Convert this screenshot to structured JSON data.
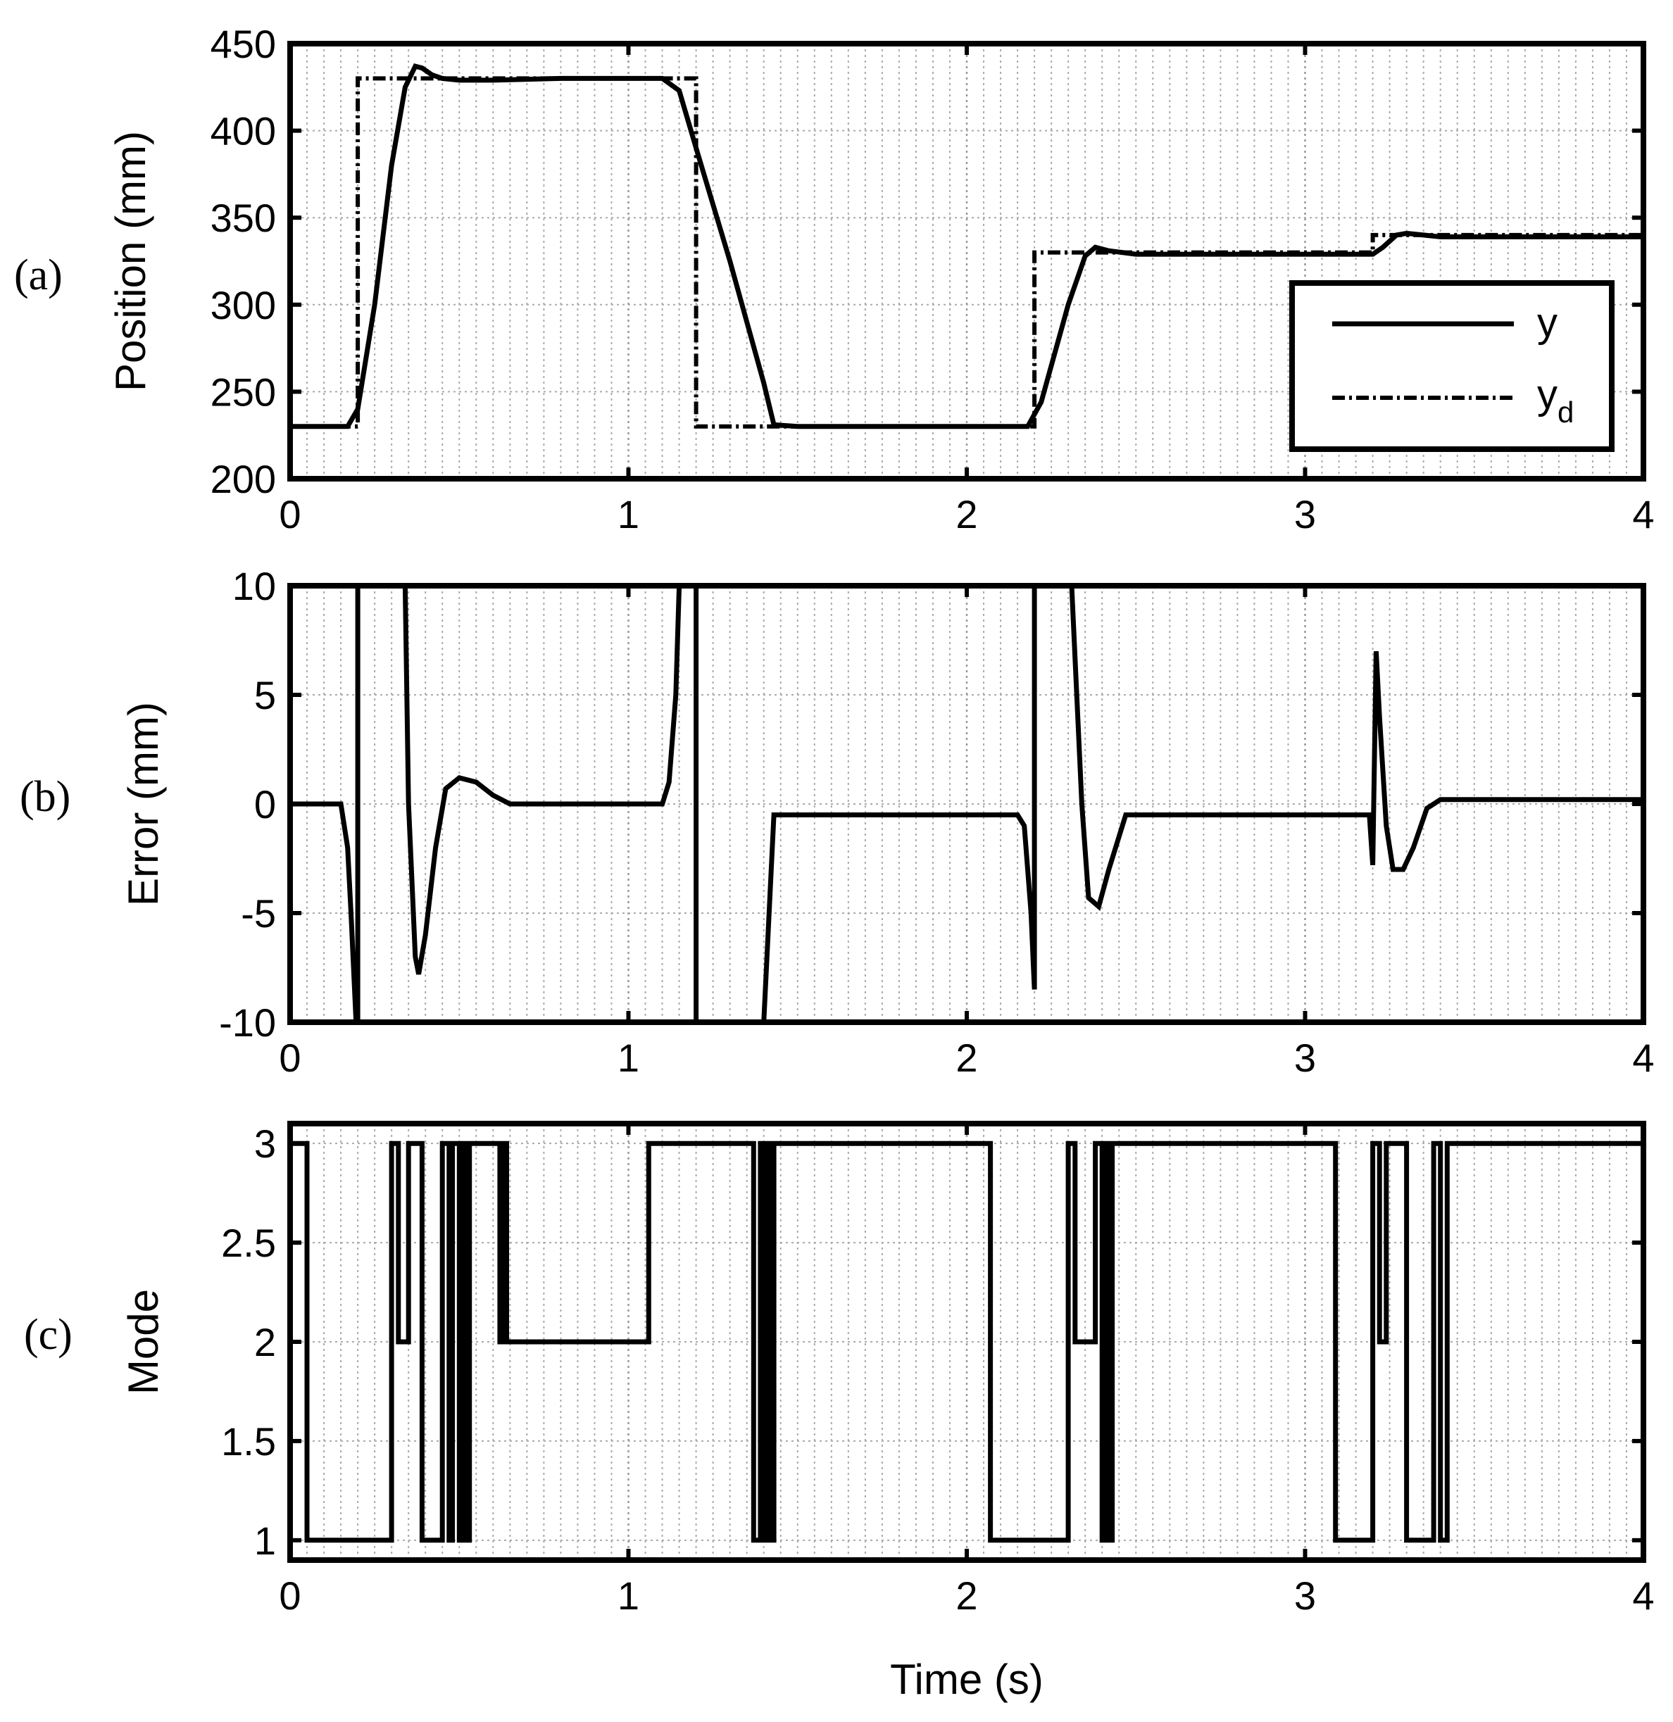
{
  "figure": {
    "xlabel": "Time (s)",
    "xticks": [
      "0",
      "1",
      "2",
      "3",
      "4"
    ]
  },
  "chart_data": [
    {
      "panel_label": "(a)",
      "type": "line",
      "ylabel": "Position (mm)",
      "xlim": [
        0,
        4
      ],
      "ylim": [
        200,
        450
      ],
      "yticks": [
        "200",
        "250",
        "300",
        "350",
        "400",
        "450"
      ],
      "grid": true,
      "legend_position": "bottom-right",
      "legend": [
        {
          "label": "y",
          "sub": "",
          "style": "solid"
        },
        {
          "label": "y",
          "sub": "d",
          "style": "dashdot"
        }
      ],
      "series": [
        {
          "name": "y",
          "style": "solid",
          "x": [
            0,
            0.17,
            0.2,
            0.25,
            0.3,
            0.34,
            0.37,
            0.39,
            0.42,
            0.45,
            0.5,
            0.6,
            0.8,
            1.0,
            1.1,
            1.15,
            1.2,
            1.3,
            1.35,
            1.4,
            1.43,
            1.5,
            1.8,
            2.0,
            2.18,
            2.22,
            2.3,
            2.35,
            2.38,
            2.42,
            2.5,
            2.8,
            3.0,
            3.2,
            3.23,
            3.27,
            3.3,
            3.35,
            3.4,
            3.6,
            4.0
          ],
          "y": [
            230,
            230,
            240,
            300,
            380,
            425,
            437,
            436,
            432,
            430,
            429,
            429,
            430,
            430,
            430,
            423,
            390,
            325,
            290,
            255,
            231,
            230,
            230,
            230,
            230,
            244,
            300,
            328,
            333,
            331,
            329,
            329,
            329,
            329,
            333,
            340,
            341,
            340,
            339,
            339,
            339
          ]
        },
        {
          "name": "yd",
          "style": "dashdot",
          "x": [
            0,
            0.2,
            0.2,
            1.2,
            1.2,
            2.2,
            2.2,
            3.2,
            3.2,
            4.0
          ],
          "y": [
            230,
            230,
            430,
            430,
            230,
            230,
            330,
            330,
            340,
            340
          ]
        }
      ]
    },
    {
      "panel_label": "(b)",
      "type": "line",
      "ylabel": "Error (mm)",
      "xlim": [
        0,
        4
      ],
      "ylim": [
        -10,
        10
      ],
      "yticks": [
        "-10",
        "-5",
        "0",
        "5",
        "10"
      ],
      "grid": true,
      "series": [
        {
          "name": "",
          "style": "solid",
          "x": [
            0,
            0.15,
            0.17,
            0.18,
            0.195,
            0.2,
            0.2,
            0.34,
            0.35,
            0.37,
            0.38,
            0.4,
            0.43,
            0.46,
            0.5,
            0.55,
            0.6,
            0.65,
            1.0,
            1.1,
            1.12,
            1.14,
            1.15,
            1.15,
            1.2,
            1.2,
            1.4,
            1.4,
            1.43,
            1.5,
            1.8,
            2.15,
            2.17,
            2.19,
            2.2,
            2.2,
            2.31,
            2.34,
            2.36,
            2.39,
            2.42,
            2.47,
            2.5,
            2.8,
            3.0,
            3.19,
            3.2,
            3.21,
            3.22,
            3.24,
            3.26,
            3.29,
            3.32,
            3.36,
            3.4,
            3.6,
            4.0
          ],
          "y": [
            0,
            0,
            -2,
            -5,
            -10,
            -10,
            10,
            10,
            0,
            -7,
            -7.8,
            -6,
            -2,
            0.7,
            1.2,
            1,
            0.4,
            0,
            0,
            0,
            1,
            5,
            10,
            10,
            10,
            -10,
            -10,
            -10,
            -0.5,
            -0.5,
            -0.5,
            -0.5,
            -1,
            -5,
            -8.5,
            10,
            10,
            0,
            -4.3,
            -4.7,
            -3,
            -0.5,
            -0.5,
            -0.5,
            -0.5,
            -0.5,
            -2.8,
            7,
            4,
            -1,
            -3,
            -3,
            -2,
            -0.2,
            0.2,
            0.2,
            0.2
          ]
        }
      ]
    },
    {
      "panel_label": "(c)",
      "type": "line",
      "ylabel": "Mode",
      "xlim": [
        0,
        4
      ],
      "ylim": [
        0.9,
        3.1
      ],
      "yticks": [
        "1",
        "1.5",
        "2",
        "2.5",
        "3"
      ],
      "grid": true,
      "series": [
        {
          "name": "",
          "style": "step",
          "x": [
            0,
            0.05,
            0.05,
            0.3,
            0.3,
            0.32,
            0.32,
            0.35,
            0.35,
            0.39,
            0.39,
            0.45,
            0.45,
            0.47,
            0.47,
            0.48,
            0.48,
            0.5,
            0.5,
            0.51,
            0.51,
            0.52,
            0.52,
            0.53,
            0.53,
            0.62,
            0.62,
            0.63,
            0.63,
            0.64,
            0.64,
            1.06,
            1.06,
            1.37,
            1.37,
            1.39,
            1.39,
            1.4,
            1.4,
            1.41,
            1.41,
            1.42,
            1.42,
            1.43,
            1.43,
            2.07,
            2.07,
            2.3,
            2.3,
            2.32,
            2.32,
            2.38,
            2.38,
            2.4,
            2.4,
            2.41,
            2.41,
            2.42,
            2.42,
            2.43,
            2.43,
            3.09,
            3.09,
            3.2,
            3.2,
            3.22,
            3.22,
            3.24,
            3.24,
            3.3,
            3.3,
            3.38,
            3.38,
            3.4,
            3.4,
            3.42,
            3.42,
            4.0
          ],
          "y": [
            3,
            3,
            1,
            1,
            3,
            3,
            2,
            2,
            3,
            3,
            1,
            1,
            3,
            3,
            1,
            1,
            3,
            3,
            1,
            1,
            3,
            3,
            1,
            1,
            3,
            3,
            2,
            2,
            3,
            3,
            2,
            2,
            3,
            3,
            1,
            1,
            3,
            3,
            1,
            1,
            3,
            3,
            1,
            1,
            3,
            3,
            1,
            1,
            3,
            3,
            2,
            2,
            3,
            3,
            1,
            1,
            3,
            3,
            1,
            1,
            3,
            3,
            1,
            1,
            3,
            3,
            2,
            2,
            3,
            3,
            1,
            1,
            3,
            3,
            1,
            1,
            3,
            3
          ]
        }
      ]
    }
  ]
}
